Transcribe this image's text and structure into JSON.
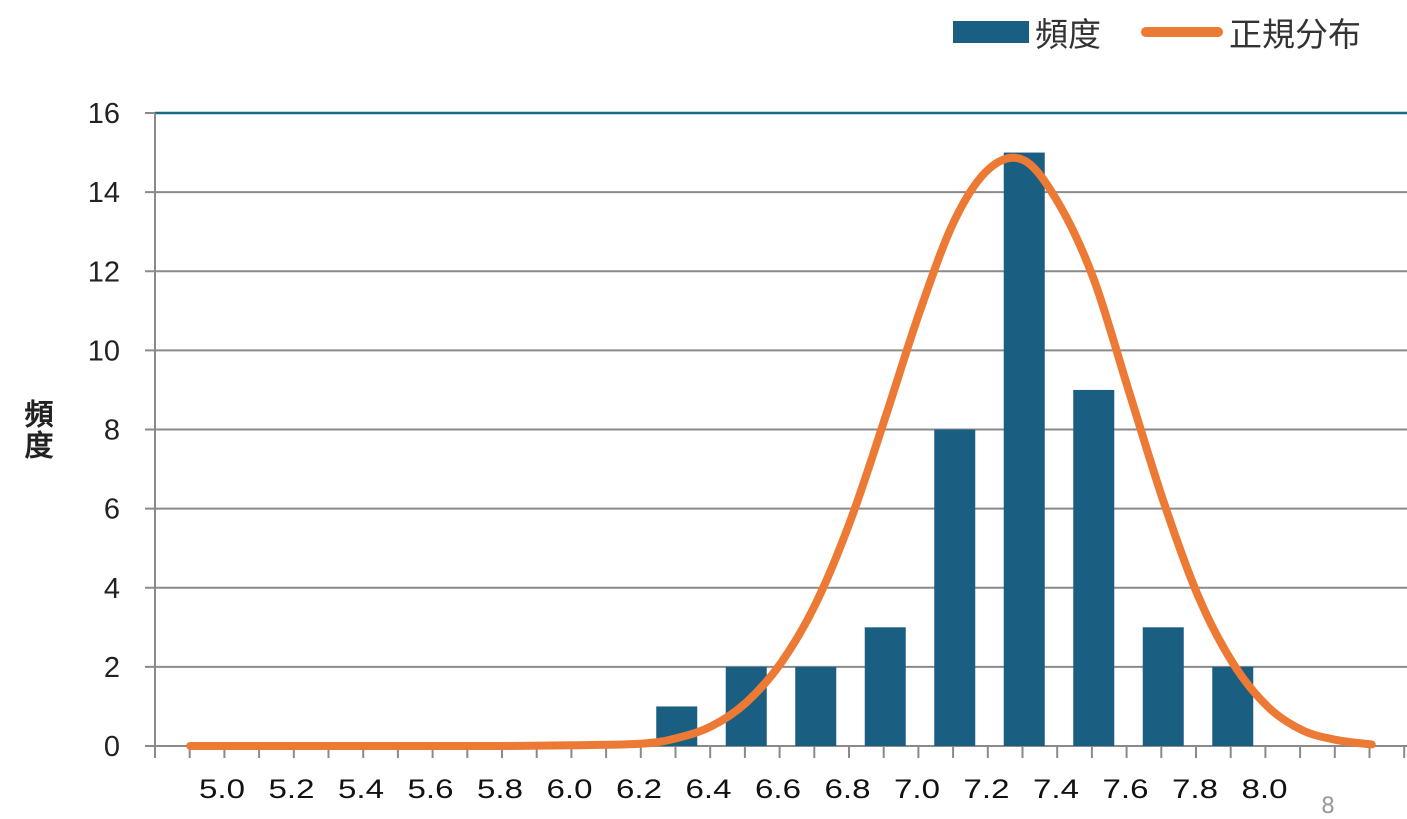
{
  "chart_data": {
    "type": "bar",
    "title": "",
    "xlabel": "",
    "ylabel": "頻度",
    "ylim": [
      0,
      16
    ],
    "yticks": [
      "0",
      "2",
      "4",
      "6",
      "8",
      "10",
      "12",
      "14",
      "16"
    ],
    "categories": [
      "5.0",
      "5.2",
      "5.4",
      "5.6",
      "5.8",
      "6.0",
      "6.2",
      "6.4",
      "6.6",
      "6.8",
      "7.0",
      "7.2",
      "7.4",
      "7.6",
      "7.8",
      "8.0"
    ],
    "series": [
      {
        "name": "頻度",
        "type": "bar",
        "color": "#1a5e82",
        "x": [
          6.3,
          6.5,
          6.7,
          6.9,
          7.1,
          7.3,
          7.5,
          7.7,
          7.9
        ],
        "values": [
          1,
          2,
          2,
          3,
          8,
          15,
          9,
          3,
          2
        ]
      },
      {
        "name": "正規分布",
        "type": "line",
        "color": "#ec7a35",
        "x": [
          4.9,
          5.0,
          5.2,
          5.4,
          5.6,
          5.8,
          6.0,
          6.2,
          6.3,
          6.4,
          6.5,
          6.6,
          6.7,
          6.8,
          6.9,
          7.0,
          7.1,
          7.2,
          7.3,
          7.4,
          7.5,
          7.6,
          7.7,
          7.8,
          7.9,
          8.0,
          8.1,
          8.2,
          8.3
        ],
        "values": [
          0,
          0,
          0,
          0,
          0,
          0,
          0.02,
          0.06,
          0.2,
          0.5,
          1.1,
          2.1,
          3.6,
          5.7,
          8.3,
          11.0,
          13.3,
          14.6,
          14.8,
          13.7,
          11.8,
          9.0,
          6.2,
          3.8,
          2.1,
          1.0,
          0.4,
          0.15,
          0.04
        ]
      }
    ],
    "legend_position": "top-right",
    "grid": true
  },
  "legend": {
    "bar_label": "頻度",
    "line_label": "正規分布"
  },
  "page_number": "8"
}
